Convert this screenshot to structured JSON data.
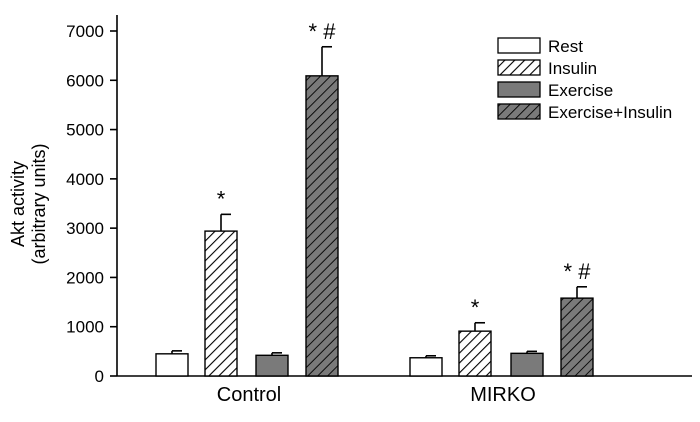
{
  "chart_data": {
    "type": "bar",
    "title": "",
    "xlabel": "",
    "ylabel": [
      "Akt activity",
      "(arbitrary units)"
    ],
    "ylim": [
      0,
      7000
    ],
    "yticks": [
      0,
      1000,
      2000,
      3000,
      4000,
      5000,
      6000,
      7000
    ],
    "ytick_labels": [
      "0",
      "1000",
      "2000",
      "3000",
      "4000",
      "5000",
      "6000",
      "7000"
    ],
    "categories": [
      "Control",
      "MIRKO"
    ],
    "legend_position": "top-right",
    "series": [
      {
        "name": "Rest",
        "values": [
          450,
          370
        ],
        "errors": [
          60,
          40
        ],
        "fill": "#ffffff",
        "hatch": false,
        "annotations": [
          "",
          ""
        ]
      },
      {
        "name": "Insulin",
        "values": [
          2940,
          910
        ],
        "errors": [
          340,
          170
        ],
        "fill": "#ffffff",
        "hatch": true,
        "annotations": [
          "*",
          "*"
        ]
      },
      {
        "name": "Exercise",
        "values": [
          420,
          460
        ],
        "errors": [
          50,
          40
        ],
        "fill": "#7a7a7a",
        "hatch": false,
        "annotations": [
          "",
          ""
        ]
      },
      {
        "name": "Exercise+Insulin",
        "values": [
          6090,
          1580
        ],
        "errors": [
          590,
          230
        ],
        "fill": "#7a7a7a",
        "hatch": true,
        "annotations": [
          "*  #",
          "*  #"
        ]
      }
    ]
  }
}
